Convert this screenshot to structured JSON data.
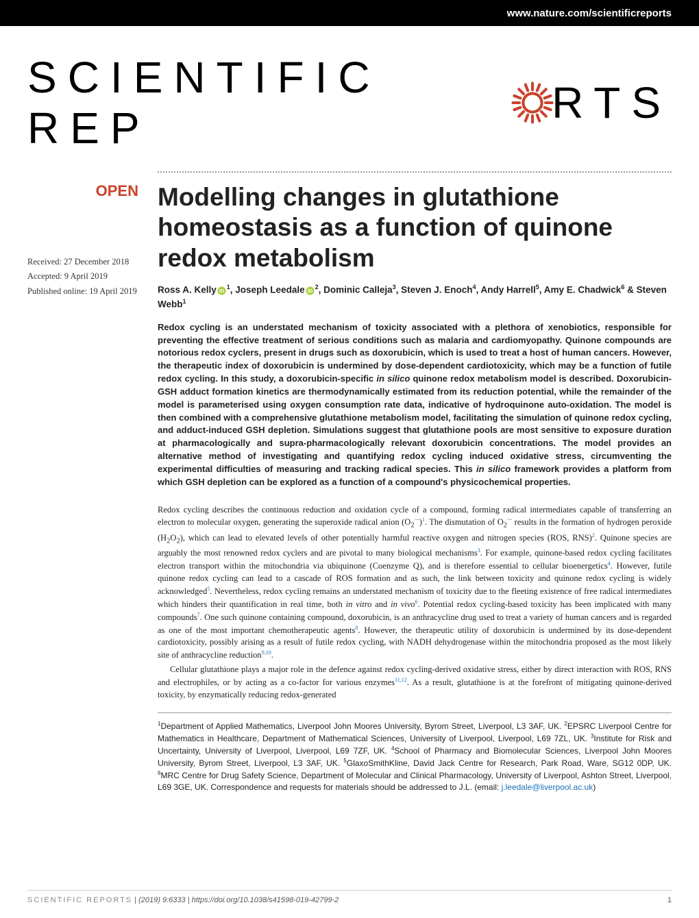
{
  "header": {
    "site_url": "www.nature.com/scientificreports"
  },
  "journal": {
    "logo_text_before": "SCIENTIFIC REP",
    "logo_text_after": "RTS",
    "gear_color": "#c8432b"
  },
  "badges": {
    "open_access": "OPEN"
  },
  "dates": {
    "received": "Received: 27 December 2018",
    "accepted": "Accepted: 9 April 2019",
    "published": "Published online: 19 April 2019"
  },
  "article": {
    "title": "Modelling changes in glutathione homeostasis as a function of quinone redox metabolism",
    "authors_html": "Ross A. Kelly<svg class='orcid-icon' width='13' height='13' viewBox='0 0 24 24'><circle cx='12' cy='12' r='11' fill='#a6ce39'/><text x='12' y='17' text-anchor='middle' fill='#fff' font-size='14' font-family='Arial' font-weight='bold'>iD</text></svg><sup>1</sup>, Joseph Leedale<svg class='orcid-icon' width='13' height='13' viewBox='0 0 24 24'><circle cx='12' cy='12' r='11' fill='#a6ce39'/><text x='12' y='17' text-anchor='middle' fill='#fff' font-size='14' font-family='Arial' font-weight='bold'>iD</text></svg><sup>2</sup>, Dominic Calleja<sup>3</sup>, Steven J. Enoch<sup>4</sup>, Andy Harrell<sup>5</sup>, Amy E. Chadwick<sup>6</sup> & Steven Webb<sup>1</sup>",
    "abstract": "Redox cycling is an understated mechanism of toxicity associated with a plethora of xenobiotics, responsible for preventing the effective treatment of serious conditions such as malaria and cardiomyopathy. Quinone compounds are notorious redox cyclers, present in drugs such as doxorubicin, which is used to treat a host of human cancers. However, the therapeutic index of doxorubicin is undermined by dose-dependent cardiotoxicity, which may be a function of futile redox cycling. In this study, a doxorubicin-specific <em>in silico</em> quinone redox metabolism model is described. Doxorubicin-GSH adduct formation kinetics are thermodynamically estimated from its reduction potential, while the remainder of the model is parameterised using oxygen consumption rate data, indicative of hydroquinone auto-oxidation. The model is then combined with a comprehensive glutathione metabolism model, facilitating the simulation of quinone redox cycling, and adduct-induced GSH depletion. Simulations suggest that glutathione pools are most sensitive to exposure duration at pharmacologically and supra-pharmacologically relevant doxorubicin concentrations. The model provides an alternative method of investigating and quantifying redox cycling induced oxidative stress, circumventing the experimental difficulties of measuring and tracking radical species. This <em>in silico</em> framework provides a platform from which GSH depletion can be explored as a function of a compound's physicochemical properties.",
    "body_p1": "Redox cycling describes the continuous reduction and oxidation cycle of a compound, forming radical intermediates capable of transferring an electron to molecular oxygen, generating the superoxide radical anion (O<sub>2</sub><sup>·−</sup>)<sup class='ref-link'>1</sup>. The dismutation of O<sub>2</sub><sup>·−</sup> results in the formation of hydrogen peroxide (H<sub>2</sub>O<sub>2</sub>), which can lead to elevated levels of other potentially harmful reactive oxygen and nitrogen species (ROS, RNS)<sup class='ref-link'>2</sup>. Quinone species are arguably the most renowned redox cyclers and are pivotal to many biological mechanisms<sup class='ref-link'>3</sup>. For example, quinone-based redox cycling facilitates electron transport within the mitochondria via ubiquinone (Coenzyme Q), and is therefore essential to cellular bioenergetics<sup class='ref-link'>4</sup>. However, futile quinone redox cycling can lead to a cascade of ROS formation and as such, the link between toxicity and quinone redox cycling is widely acknowledged<sup class='ref-link'>5</sup>. Nevertheless, redox cycling remains an understated mechanism of toxicity due to the fleeting existence of free radical intermediates which hinders their quantification in real time, both <em>in vitro</em> and <em>in vivo</em><sup class='ref-link'>6</sup>. Potential redox cycling-based toxicity has been implicated with many compounds<sup class='ref-link'>7</sup>. One such quinone containing compound, doxorubicin, is an anthracycline drug used to treat a variety of human cancers and is regarded as one of the most important chemotherapeutic agents<sup class='ref-link'>8</sup>. However, the therapeutic utility of doxorubicin is undermined by its dose-dependent cardiotoxicity, possibly arising as a result of futile redox cycling, with NADH dehydrogenase within the mitochondria proposed as the most likely site of anthracycline reduction<sup class='ref-link'>9,10</sup>.",
    "body_p2": "Cellular glutathione plays a major role in the defence against redox cycling-derived oxidative stress, either by direct interaction with ROS, RNS and electrophiles, or by acting as a co-factor for various enzymes<sup class='ref-link'>11,12</sup>. As a result, glutathione is at the forefront of mitigating quinone-derived toxicity, by enzymatically reducing redox-generated",
    "affiliations_html": "<sup>1</sup>Department of Applied Mathematics, Liverpool John Moores University, Byrom Street, Liverpool, L3 3AF, UK. <sup>2</sup>EPSRC Liverpool Centre for Mathematics in Healthcare, Department of Mathematical Sciences, University of Liverpool, Liverpool, L69 7ZL, UK. <sup>3</sup>Institute for Risk and Uncertainty, University of Liverpool, Liverpool, L69 7ZF, UK. <sup>4</sup>School of Pharmacy and Biomolecular Sciences, Liverpool John Moores University, Byrom Street, Liverpool, L3 3AF, UK. <sup>5</sup>GlaxoSmithKline, David Jack Centre for Research, Park Road, Ware, SG12 0DP, UK. <sup>6</sup>MRC Centre for Drug Safety Science, Department of Molecular and Clinical Pharmacology, University of Liverpool, Ashton Street, Liverpool, L69 3GE, UK. Correspondence and requests for materials should be addressed to J.L. (email: <span class='email-link'>j.leedale@liverpool.ac.uk</span>)"
  },
  "footer": {
    "journal_name": "SCIENTIFIC REPORTS",
    "citation": "(2019) 9:6333 | https://doi.org/10.1038/s41598-019-42799-2",
    "page_number": "1"
  },
  "colors": {
    "accent": "#c8432b",
    "link": "#1a6fb8",
    "orcid": "#a6ce39",
    "text": "#222222",
    "header_bg": "#000000"
  }
}
